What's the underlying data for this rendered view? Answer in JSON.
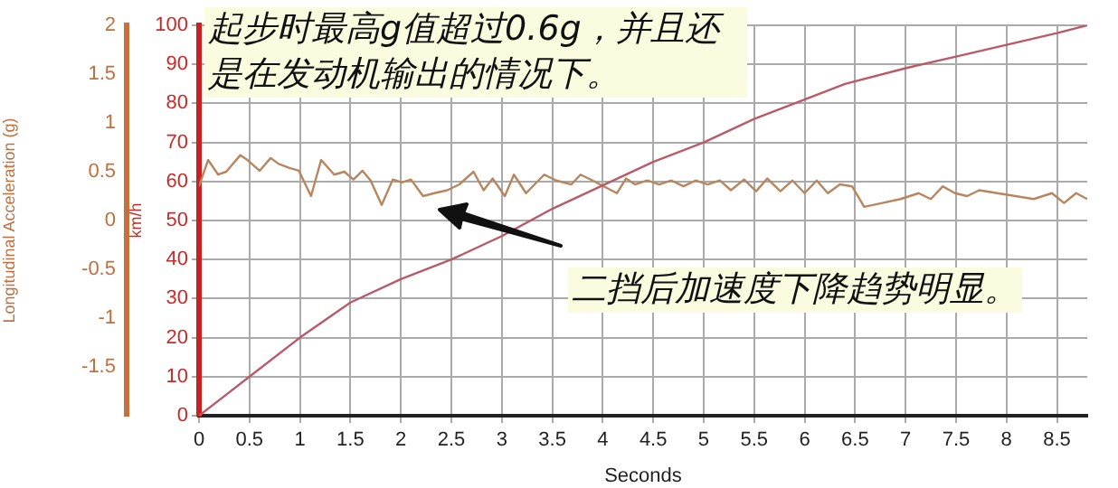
{
  "chart_data": {
    "type": "line",
    "xlabel": "Seconds",
    "ylabel": "km/h",
    "y2label": "Longitudinal Acceleration (g)",
    "xlim": [
      0,
      8.8
    ],
    "xticks": [
      0,
      0.5,
      1,
      1.5,
      2,
      2.5,
      3,
      3.5,
      4,
      4.5,
      5,
      5.5,
      6,
      6.5,
      7,
      7.5,
      8,
      8.5
    ],
    "ylim": [
      0,
      100
    ],
    "yticks": [
      0,
      10,
      20,
      30,
      40,
      50,
      60,
      70,
      80,
      90,
      100
    ],
    "y2lim": [
      -2,
      2
    ],
    "y2ticks": [
      -1.5,
      -1,
      -0.5,
      0,
      0.5,
      1,
      1.5,
      2
    ],
    "grid": true,
    "legend": false,
    "line_style": "solid",
    "marker": "none",
    "annotations": [
      "起步时最高g值超过0.6g，并且还是在发动机输出的情况下。",
      "二挡后加速度下降趋势明显。"
    ],
    "series": [
      {
        "color": "#b85a68",
        "x": [
          0,
          0.3,
          0.5,
          1,
          1.5,
          2,
          2.5,
          3,
          3.5,
          4,
          4.5,
          5,
          5.5,
          6,
          6.4,
          7,
          7.5,
          8,
          8.5,
          8.8
        ],
        "values": [
          0,
          6,
          10,
          20,
          29,
          35,
          40,
          46,
          53,
          59,
          65,
          70,
          76,
          81,
          85,
          89,
          92,
          95,
          98,
          100
        ]
      },
      {
        "axis": "y2",
        "color": "#b8865e",
        "x": [
          0,
          0.09,
          0.19,
          0.27,
          0.41,
          0.48,
          0.6,
          0.71,
          0.79,
          0.89,
          0.99,
          1.11,
          1.21,
          1.34,
          1.44,
          1.53,
          1.62,
          1.7,
          1.81,
          1.92,
          2.01,
          2.1,
          2.22,
          2.33,
          2.46,
          2.58,
          2.72,
          2.82,
          2.91,
          3.03,
          3.12,
          3.24,
          3.42,
          3.54,
          3.69,
          3.78,
          3.9,
          4.01,
          4.14,
          4.23,
          4.32,
          4.44,
          4.56,
          4.68,
          4.8,
          4.92,
          5.04,
          5.16,
          5.27,
          5.4,
          5.52,
          5.63,
          5.76,
          5.88,
          6.0,
          6.12,
          6.23,
          6.35,
          6.47,
          6.59,
          6.77,
          6.95,
          7.13,
          7.25,
          7.37,
          7.49,
          7.61,
          7.73,
          7.91,
          8.09,
          8.27,
          8.45,
          8.57,
          8.69,
          8.8
        ],
        "values": [
          0.35,
          0.62,
          0.47,
          0.5,
          0.67,
          0.62,
          0.51,
          0.64,
          0.58,
          0.54,
          0.51,
          0.25,
          0.62,
          0.47,
          0.5,
          0.42,
          0.51,
          0.41,
          0.16,
          0.42,
          0.39,
          0.42,
          0.25,
          0.28,
          0.31,
          0.37,
          0.5,
          0.31,
          0.43,
          0.25,
          0.47,
          0.28,
          0.47,
          0.41,
          0.37,
          0.47,
          0.41,
          0.35,
          0.28,
          0.43,
          0.37,
          0.41,
          0.37,
          0.41,
          0.35,
          0.41,
          0.37,
          0.41,
          0.31,
          0.42,
          0.3,
          0.43,
          0.3,
          0.41,
          0.28,
          0.41,
          0.28,
          0.37,
          0.35,
          0.14,
          0.18,
          0.22,
          0.28,
          0.22,
          0.35,
          0.28,
          0.25,
          0.31,
          0.28,
          0.25,
          0.22,
          0.28,
          0.18,
          0.28,
          0.22
        ]
      }
    ]
  }
}
